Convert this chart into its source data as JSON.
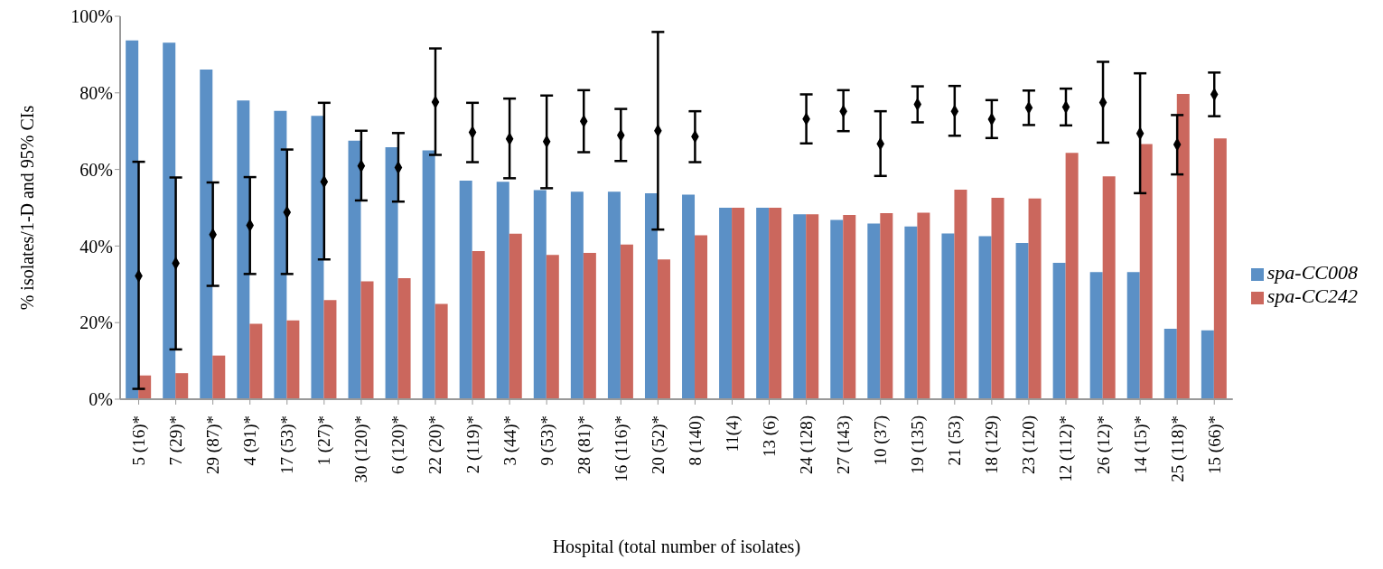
{
  "chart_data": {
    "type": "bar",
    "xlabel": "Hospital (total number of isolates)",
    "ylabel": "% isolates/1-D and 95% CIs",
    "categories": [
      "5 (16)*",
      "7 (29)*",
      "29 (87)*",
      "4 (91)*",
      "17 (53)*",
      "1 (27)*",
      "30 (120)*",
      "6 (120)*",
      "22 (20)*",
      "2 (119)*",
      "3 (44)*",
      "9 (53)*",
      "28 (81)*",
      "16 (116)*",
      "20 (52)*",
      "8 (140)",
      "11(4)",
      "13 (6)",
      "24 (128)",
      "27 (143)",
      "10 (37)",
      "19 (135)",
      "21 (53)",
      "18 (129)",
      "23 (120)",
      "12 (112)*",
      "26 (12)*",
      "14 (15)*",
      "25 (118)*",
      "15 (66)*"
    ],
    "series": [
      {
        "name": "spa-CC008",
        "color": "#5b90c6",
        "values": [
          93.7,
          93.1,
          86.1,
          78,
          75.3,
          74,
          67.5,
          65.8,
          65,
          57.1,
          56.8,
          54.6,
          54.2,
          54.2,
          53.8,
          53.4,
          50,
          50,
          48.3,
          46.8,
          45.9,
          45.1,
          43.3,
          42.6,
          40.8,
          35.6,
          33.2,
          33.2,
          18.4,
          18
        ]
      },
      {
        "name": "spa-CC242",
        "color": "#cb675d",
        "values": [
          6.2,
          6.8,
          11.4,
          19.7,
          20.6,
          25.9,
          30.8,
          31.6,
          24.9,
          38.7,
          43.2,
          37.7,
          38.2,
          40.4,
          36.5,
          42.8,
          50,
          50,
          48.3,
          48.1,
          48.6,
          48.7,
          54.7,
          52.6,
          52.4,
          64.3,
          58.2,
          66.6,
          79.7,
          68.1
        ]
      },
      {
        "type": "scatter",
        "color": "#000000",
        "marker": "diamond",
        "values": [
          32.2,
          35.5,
          43,
          45.4,
          48.8,
          56.8,
          60.9,
          60.5,
          77.6,
          69.7,
          68,
          67.3,
          72.6,
          68.9,
          70.1,
          68.6,
          null,
          null,
          73.2,
          75.2,
          66.7,
          77,
          75.2,
          73.1,
          76.1,
          76.3,
          77.5,
          69.4,
          66.5,
          79.6
        ],
        "errors": [
          [
            2.7,
            62
          ],
          [
            13,
            57.9
          ],
          [
            29.6,
            56.6
          ],
          [
            32.7,
            58
          ],
          [
            32.7,
            65.2
          ],
          [
            36.5,
            77.4
          ],
          [
            51.9,
            70.1
          ],
          [
            51.6,
            69.5
          ],
          [
            63.8,
            91.6
          ],
          [
            61.9,
            77.4
          ],
          [
            57.7,
            78.5
          ],
          [
            55.1,
            79.3
          ],
          [
            64.5,
            80.7
          ],
          [
            62.2,
            75.8
          ],
          [
            44.3,
            95.9
          ],
          [
            61.9,
            75.2
          ],
          null,
          null,
          [
            66.8,
            79.6
          ],
          [
            70,
            80.7
          ],
          [
            58.3,
            75.2
          ],
          [
            72.3,
            81.7
          ],
          [
            68.8,
            81.8
          ],
          [
            68.2,
            78.1
          ],
          [
            71.6,
            80.6
          ],
          [
            71.5,
            81.1
          ],
          [
            67,
            88.1
          ],
          [
            53.8,
            85.1
          ],
          [
            58.7,
            74.2
          ],
          [
            73.9,
            85.3
          ]
        ]
      }
    ],
    "ylim": [
      0,
      100
    ],
    "yticks": [
      {
        "value": 0,
        "label": "0%"
      },
      {
        "value": 20,
        "label": "20%"
      },
      {
        "value": 40,
        "label": "40%"
      },
      {
        "value": 60,
        "label": "60%"
      },
      {
        "value": 80,
        "label": "80%"
      },
      {
        "value": 100,
        "label": "100%"
      }
    ],
    "grid": false,
    "legend": "right"
  }
}
